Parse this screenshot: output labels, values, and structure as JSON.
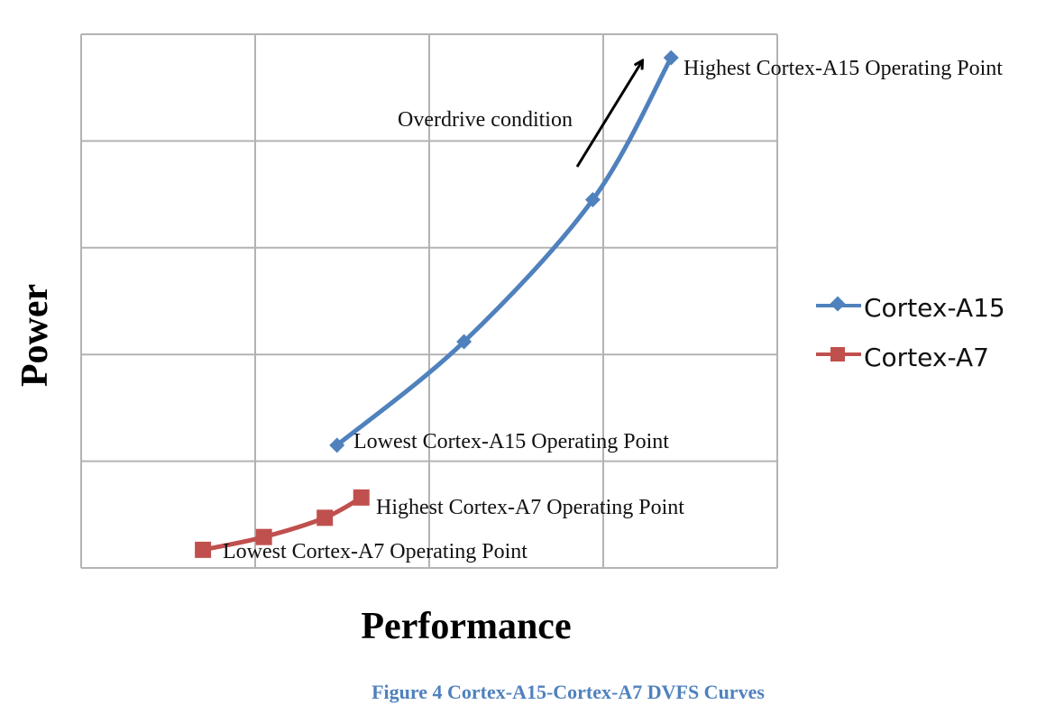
{
  "caption": "Figure 4 Cortex-A15-Cortex-A7 DVFS Curves",
  "chart_data": {
    "type": "line",
    "xlabel": "Performance",
    "ylabel": "Power",
    "xlim": [
      0,
      4
    ],
    "ylim": [
      0,
      5
    ],
    "grid": true,
    "tick_labels_shown": false,
    "legend_position": "right",
    "series": [
      {
        "name": "Cortex-A15",
        "color": "#4f81bd",
        "marker": "diamond",
        "x": [
          1.47,
          2.2,
          2.94,
          3.39
        ],
        "y": [
          1.15,
          2.12,
          3.45,
          4.78
        ]
      },
      {
        "name": "Cortex-A7",
        "color": "#c0504d",
        "marker": "square",
        "x": [
          0.7,
          1.05,
          1.4,
          1.61
        ],
        "y": [
          0.17,
          0.29,
          0.47,
          0.66
        ]
      }
    ],
    "annotations": [
      {
        "text": "Highest Cortex-A15 Operating Point",
        "series": 0,
        "point": 3
      },
      {
        "text": "Lowest Cortex-A15 Operating Point",
        "series": 0,
        "point": 0
      },
      {
        "text": "Highest Cortex-A7 Operating Point",
        "series": 1,
        "point": 3
      },
      {
        "text": "Lowest Cortex-A7 Operating Point",
        "series": 1,
        "point": 0
      },
      {
        "text": "Overdrive condition",
        "arrow": true
      }
    ]
  }
}
